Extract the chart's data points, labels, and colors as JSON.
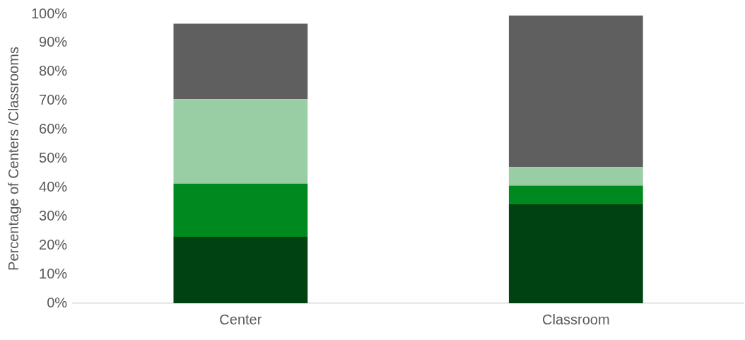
{
  "chart_data": {
    "type": "bar",
    "stacked": true,
    "ylabel": "Percentage of Centers /Classrooms",
    "categories": [
      "Center",
      "Classroom"
    ],
    "series": [
      {
        "color": "#004212",
        "values": [
          23.0,
          34.2
        ]
      },
      {
        "color": "#00891e",
        "values": [
          18.4,
          6.5
        ]
      },
      {
        "color": "#99cda3",
        "values": [
          29.2,
          6.4
        ]
      },
      {
        "color": "#5f5f5f",
        "values": [
          26.1,
          52.4
        ]
      }
    ],
    "ylim": [
      0,
      100
    ],
    "yticks": [
      {
        "value": 0,
        "label": "0%"
      },
      {
        "value": 10,
        "label": "10%"
      },
      {
        "value": 20,
        "label": "20%"
      },
      {
        "value": 30,
        "label": "30%"
      },
      {
        "value": 40,
        "label": "40%"
      },
      {
        "value": 50,
        "label": "50%"
      },
      {
        "value": 60,
        "label": "60%"
      },
      {
        "value": 70,
        "label": "70%"
      },
      {
        "value": 80,
        "label": "80%"
      },
      {
        "value": 90,
        "label": "90%"
      },
      {
        "value": 100,
        "label": "100%"
      }
    ],
    "grid": false,
    "legend": false
  }
}
